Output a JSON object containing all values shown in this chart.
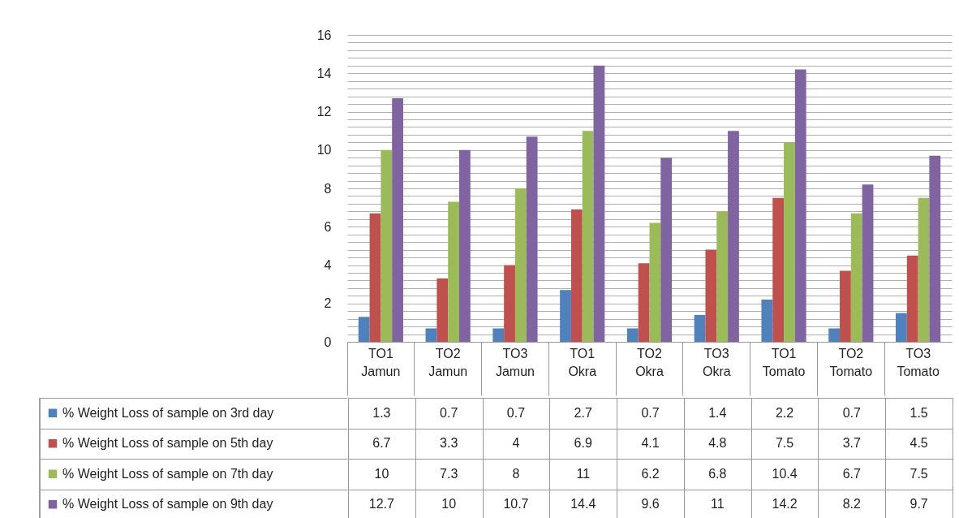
{
  "chart_data": {
    "type": "bar",
    "categories": [
      "TO1 Jamun",
      "TO2 Jamun",
      "TO3 Jamun",
      "TO1 Okra",
      "TO2 Okra",
      "TO3 Okra",
      "TO1 Tomato",
      "TO2 Tomato",
      "TO3 Tomato"
    ],
    "series": [
      {
        "name": "% Weight Loss of sample on 3rd day",
        "color": "#4f81bd",
        "values": [
          1.3,
          0.7,
          0.7,
          2.7,
          0.7,
          1.4,
          2.2,
          0.7,
          1.5
        ]
      },
      {
        "name": "% Weight Loss of sample on 5th day",
        "color": "#c0504d",
        "values": [
          6.7,
          3.3,
          4,
          6.9,
          4.1,
          4.8,
          7.5,
          3.7,
          4.5
        ]
      },
      {
        "name": "% Weight Loss of sample on 7th day",
        "color": "#9bbb59",
        "values": [
          10,
          7.3,
          8,
          11,
          6.2,
          6.8,
          10.4,
          6.7,
          7.5
        ]
      },
      {
        "name": "% Weight Loss of sample on 9th day",
        "color": "#8064a2",
        "values": [
          12.7,
          10,
          10.7,
          14.4,
          9.6,
          11,
          14.2,
          8.2,
          9.7
        ]
      }
    ],
    "ylim": [
      0,
      16
    ],
    "yticks": [
      0,
      {
        "value": 0.4,
        "label": null
      },
      {
        "value": 0.8,
        "label": null
      },
      {
        "value": 1.2,
        "label": null
      },
      {
        "value": 1.6,
        "label": null
      },
      2,
      {
        "value": 2.4,
        "label": null
      },
      {
        "value": 2.8,
        "label": null
      },
      {
        "value": 3.2,
        "label": null
      },
      {
        "value": 3.6,
        "label": null
      },
      4,
      {
        "value": 4.4,
        "label": null
      },
      {
        "value": 4.8,
        "label": null
      },
      {
        "value": 5.2,
        "label": null
      },
      {
        "value": 5.6,
        "label": null
      },
      6,
      {
        "value": 6.4,
        "label": null
      },
      {
        "value": 6.8,
        "label": null
      },
      {
        "value": 7.2,
        "label": null
      },
      {
        "value": 7.6,
        "label": null
      },
      8,
      {
        "value": 8.4,
        "label": null
      },
      {
        "value": 8.8,
        "label": null
      },
      {
        "value": 9.2,
        "label": null
      },
      {
        "value": 9.6,
        "label": null
      },
      10,
      {
        "value": 10.4,
        "label": null
      },
      {
        "value": 10.8,
        "label": null
      },
      {
        "value": 11.2,
        "label": null
      },
      {
        "value": 11.6,
        "label": null
      },
      12,
      {
        "value": 12.4,
        "label": null
      },
      {
        "value": 12.8,
        "label": null
      },
      {
        "value": 13.2,
        "label": null
      },
      {
        "value": 13.6,
        "label": null
      },
      14,
      {
        "value": 14.4,
        "label": null
      },
      {
        "value": 14.8,
        "label": null
      },
      {
        "value": 15.2,
        "label": null
      },
      {
        "value": 15.6,
        "label": null
      },
      16
    ],
    "grid": "y",
    "legend": "bottom",
    "data_labels": true
  }
}
